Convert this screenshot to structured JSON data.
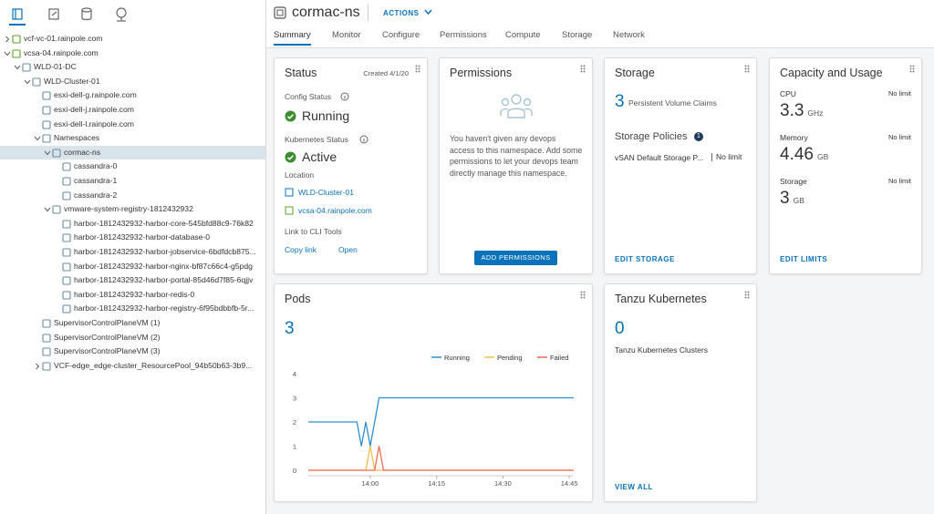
{
  "sidebar": {
    "tree": [
      {
        "label": "vcf-vc-01.rainpole.com",
        "expanded": false
      },
      {
        "label": "vcsa-04.rainpole.com",
        "expanded": true,
        "children": [
          {
            "label": "WLD-01-DC",
            "expanded": true,
            "children": [
              {
                "label": "WLD-Cluster-01",
                "expanded": true,
                "children": [
                  {
                    "label": "esxi-dell-g.rainpole.com"
                  },
                  {
                    "label": "esxi-dell-j.rainpole.com"
                  },
                  {
                    "label": "esxi-dell-l.rainpole.com"
                  },
                  {
                    "label": "Namespaces",
                    "expanded": true,
                    "children": [
                      {
                        "label": "cormac-ns",
                        "expanded": true,
                        "selected": true,
                        "children": [
                          {
                            "label": "cassandra-0"
                          },
                          {
                            "label": "cassandra-1"
                          },
                          {
                            "label": "cassandra-2"
                          }
                        ]
                      },
                      {
                        "label": "vmware-system-registry-1812432932",
                        "expanded": true,
                        "children": [
                          {
                            "label": "harbor-1812432932-harbor-core-545bfd88c9-76k82"
                          },
                          {
                            "label": "harbor-1812432932-harbor-database-0"
                          },
                          {
                            "label": "harbor-1812432932-harbor-jobservice-6bdfdcb875..."
                          },
                          {
                            "label": "harbor-1812432932-harbor-nginx-bf87c66c4-g5pdg"
                          },
                          {
                            "label": "harbor-1812432932-harbor-portal-85d46d7f85-6qjjv"
                          },
                          {
                            "label": "harbor-1812432932-harbor-redis-0"
                          },
                          {
                            "label": "harbor-1812432932-harbor-registry-6f95bdbbfb-5r..."
                          }
                        ]
                      }
                    ]
                  },
                  {
                    "label": "SupervisorControlPlaneVM (1)"
                  },
                  {
                    "label": "SupervisorControlPlaneVM (2)"
                  },
                  {
                    "label": "SupervisorControlPlaneVM (3)"
                  },
                  {
                    "label": "VCF-edge_edge-cluster_ResourcePool_94b50b63-3b9...",
                    "expanded": false
                  }
                ]
              }
            ]
          }
        ]
      }
    ]
  },
  "header": {
    "title": "cormac-ns",
    "actions": "ACTIONS",
    "tabs": [
      "Summary",
      "Monitor",
      "Configure",
      "Permissions",
      "Compute",
      "Storage",
      "Network"
    ],
    "active_tab": 0
  },
  "status": {
    "title": "Status",
    "created": "Created 4/1/20",
    "config_label": "Config Status",
    "config_value": "Running",
    "k8s_label": "Kubernetes Status",
    "k8s_value": "Active",
    "location_label": "Location",
    "cluster": "WLD-Cluster-01",
    "vcenter": "vcsa-04.rainpole.com",
    "cli_label": "Link to CLI Tools",
    "copy_link": "Copy link",
    "open": "Open"
  },
  "permissions": {
    "title": "Permissions",
    "message": "You haven't given any devops access to this namespace. Add some permissions to let your devops team directly manage this namespace.",
    "button": "ADD PERMISSIONS"
  },
  "storage": {
    "title": "Storage",
    "pvc_count": 3,
    "pvc_label": "Persistent Volume Claims",
    "policies_label": "Storage Policies",
    "policies_count": 1,
    "policy_name": "vSAN Default Storage P...",
    "policy_limit": "No limit",
    "action": "EDIT STORAGE"
  },
  "capacity": {
    "title": "Capacity and Usage",
    "items": [
      {
        "label": "CPU",
        "limit": "No limit",
        "value": 3.3,
        "unit": "GHz"
      },
      {
        "label": "Memory",
        "limit": "No limit",
        "value": 4.46,
        "unit": "GB"
      },
      {
        "label": "Storage",
        "limit": "No limit",
        "value": 3,
        "unit": "GB"
      }
    ],
    "action": "EDIT LIMITS"
  },
  "pods": {
    "title": "Pods",
    "count": 3,
    "chart_data": {
      "type": "line",
      "categories": [
        null,
        null,
        null,
        null,
        null,
        null,
        null,
        null,
        null,
        null,
        null,
        null,
        null,
        null,
        "14:00",
        null,
        null,
        null,
        null,
        null,
        null,
        null,
        null,
        null,
        null,
        null,
        null,
        null,
        null,
        "14:15",
        null,
        null,
        null,
        null,
        null,
        null,
        null,
        null,
        null,
        null,
        null,
        null,
        null,
        null,
        "14:30",
        null,
        null,
        null,
        null,
        null,
        null,
        null,
        null,
        null,
        null,
        null,
        null,
        null,
        null,
        "14:45",
        null
      ],
      "series": [
        {
          "name": "Running",
          "color": "#2f8ed3",
          "values": [
            2,
            2,
            2,
            2,
            2,
            2,
            2,
            2,
            2,
            2,
            2,
            2,
            1,
            2,
            1,
            2,
            3,
            3,
            3,
            3,
            3,
            3,
            3,
            3,
            3,
            3,
            3,
            3,
            3,
            3,
            3,
            3,
            3,
            3,
            3,
            3,
            3,
            3,
            3,
            3,
            3,
            3,
            3,
            3,
            3,
            3,
            3,
            3,
            3,
            3,
            3,
            3,
            3,
            3,
            3,
            3,
            3,
            3,
            3,
            3,
            3
          ]
        },
        {
          "name": "Pending",
          "color": "#f2bf4b",
          "values": [
            0,
            0,
            0,
            0,
            0,
            0,
            0,
            0,
            0,
            0,
            0,
            0,
            0,
            0,
            1,
            0,
            0,
            0,
            0,
            0,
            0,
            0,
            0,
            0,
            0,
            0,
            0,
            0,
            0,
            0,
            0,
            0,
            0,
            0,
            0,
            0,
            0,
            0,
            0,
            0,
            0,
            0,
            0,
            0,
            0,
            0,
            0,
            0,
            0,
            0,
            0,
            0,
            0,
            0,
            0,
            0,
            0,
            0,
            0,
            0,
            0
          ]
        },
        {
          "name": "Failed",
          "color": "#ec6b56",
          "values": [
            0,
            0,
            0,
            0,
            0,
            0,
            0,
            0,
            0,
            0,
            0,
            0,
            0,
            0,
            0,
            0,
            1,
            0,
            0,
            0,
            0,
            0,
            0,
            0,
            0,
            0,
            0,
            0,
            0,
            0,
            0,
            0,
            0,
            0,
            0,
            0,
            0,
            0,
            0,
            0,
            0,
            0,
            0,
            0,
            0,
            0,
            0,
            0,
            0,
            0,
            0,
            0,
            0,
            0,
            0,
            0,
            0,
            0,
            0,
            0,
            0
          ]
        }
      ],
      "ylim": [
        0,
        4
      ],
      "yticks": [
        0,
        1,
        2,
        3,
        4
      ],
      "grid": false,
      "legend": "top-right"
    }
  },
  "tanzu": {
    "title": "Tanzu Kubernetes",
    "count": 0,
    "label": "Tanzu Kubernetes Clusters",
    "action": "VIEW ALL"
  }
}
